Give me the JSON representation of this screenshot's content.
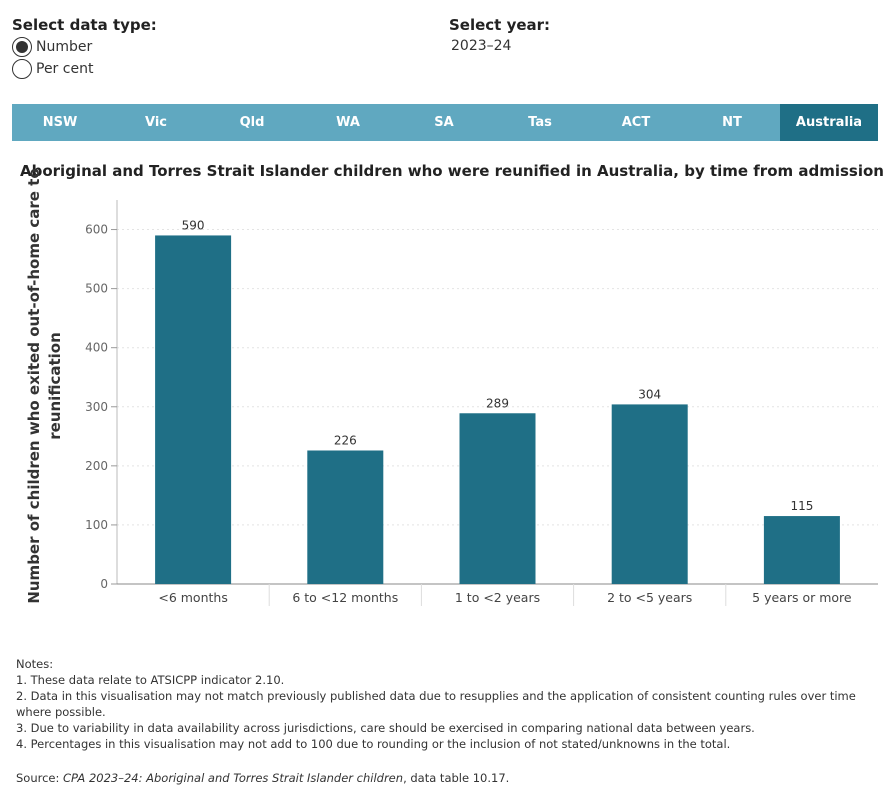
{
  "controls": {
    "data_type_title": "Select data type:",
    "options": [
      {
        "label": "Number",
        "selected": true
      },
      {
        "label": "Per cent",
        "selected": false
      }
    ],
    "year_title": "Select year:",
    "year_value": "2023–24"
  },
  "tabs": [
    {
      "label": "NSW",
      "active": false
    },
    {
      "label": "Vic",
      "active": false
    },
    {
      "label": "Qld",
      "active": false
    },
    {
      "label": "WA",
      "active": false
    },
    {
      "label": "SA",
      "active": false
    },
    {
      "label": "Tas",
      "active": false
    },
    {
      "label": "ACT",
      "active": false
    },
    {
      "label": "NT",
      "active": false
    },
    {
      "label": "Australia",
      "active": true
    }
  ],
  "chart_data": {
    "type": "bar",
    "title": "Aboriginal and Torres Strait Islander children who were reunified in Australia, by time from admission",
    "ylabel_lines": [
      "Number of children who exited out-of-home care to",
      "reunification"
    ],
    "categories": [
      "<6 months",
      "6 to <12 months",
      "1 to <2 years",
      "2 to <5 years",
      "5 years or more"
    ],
    "values": [
      590,
      226,
      289,
      304,
      115
    ],
    "data_labels": [
      "590",
      "226",
      "289",
      "304",
      "115"
    ],
    "ylim": [
      0,
      650
    ],
    "yticks": [
      0,
      100,
      200,
      300,
      400,
      500,
      600
    ],
    "grid": true,
    "bar_color": "#1f6f86"
  },
  "notes": {
    "heading": "Notes:",
    "items": [
      "1. These data relate to ATSICPP indicator 2.10.",
      "2. Data in this visualisation may not match previously published data due to resupplies and the application of consistent counting rules over time where possible.",
      "3. Due to variability in data availability across jurisdictions, care should be exercised in comparing national data between years.",
      "4. Percentages in this visualisation may not add to 100 due to rounding or the inclusion of not stated/unknowns in the total."
    ]
  },
  "source": {
    "prefix": "Source: ",
    "title": "CPA 2023–24: Aboriginal and Torres Strait Islander children",
    "suffix": ", data table 10.17."
  }
}
